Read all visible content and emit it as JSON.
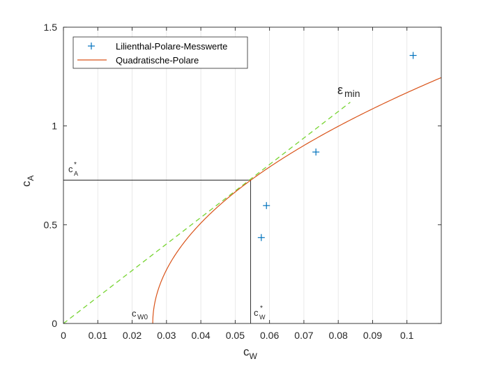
{
  "chart_data": {
    "type": "scatter",
    "xlabel": {
      "main": "c",
      "sub": "W"
    },
    "ylabel": {
      "main": "c",
      "sub": "A"
    },
    "xlim": [
      0,
      0.11
    ],
    "ylim": [
      0,
      1.5
    ],
    "xticks": [
      0,
      0.01,
      0.02,
      0.03,
      0.04,
      0.05,
      0.06,
      0.07,
      0.08,
      0.09,
      0.1
    ],
    "xtick_labels": [
      "0",
      "0.01",
      "0.02",
      "0.03",
      "0.04",
      "0.05",
      "0.06",
      "0.07",
      "0.08",
      "0.09",
      "0.1"
    ],
    "yticks": [
      0,
      0.5,
      1,
      1.5
    ],
    "ytick_labels": [
      "0",
      "0.5",
      "1",
      "1.5"
    ],
    "grid": "vertical",
    "legend_position": "top-left",
    "colors": {
      "measured": "#0072bd",
      "quadratic": "#d95319",
      "tangent": "#77d432",
      "axes": "#262626",
      "reference": "#000000"
    },
    "series": [
      {
        "name": "Lilienthal-Polare-Messwerte",
        "kind": "markers",
        "marker": "+",
        "x": [
          0.0576,
          0.0591,
          0.0735,
          0.1018
        ],
        "y": [
          0.435,
          0.597,
          0.868,
          1.357
        ]
      },
      {
        "name": "Quadratische-Polare",
        "kind": "line",
        "model": "cW = cW0 + k*cA^2",
        "cW0": 0.026,
        "k": 0.0542,
        "x_max": 0.11
      },
      {
        "kind": "dashed-line",
        "x": [
          0,
          0.0835
        ],
        "y": [
          0,
          1.12
        ]
      }
    ],
    "reference_point": {
      "x": 0.0545,
      "y": 0.726
    },
    "annotations": {
      "cA_star": {
        "main": "c",
        "sup": "*",
        "sub": "A"
      },
      "cW_star": {
        "main": "c",
        "sup": "*",
        "sub": "W"
      },
      "cW0": {
        "main": "c",
        "sub": "W0"
      },
      "eps_min": {
        "main": "ε",
        "sub": "min"
      }
    }
  }
}
